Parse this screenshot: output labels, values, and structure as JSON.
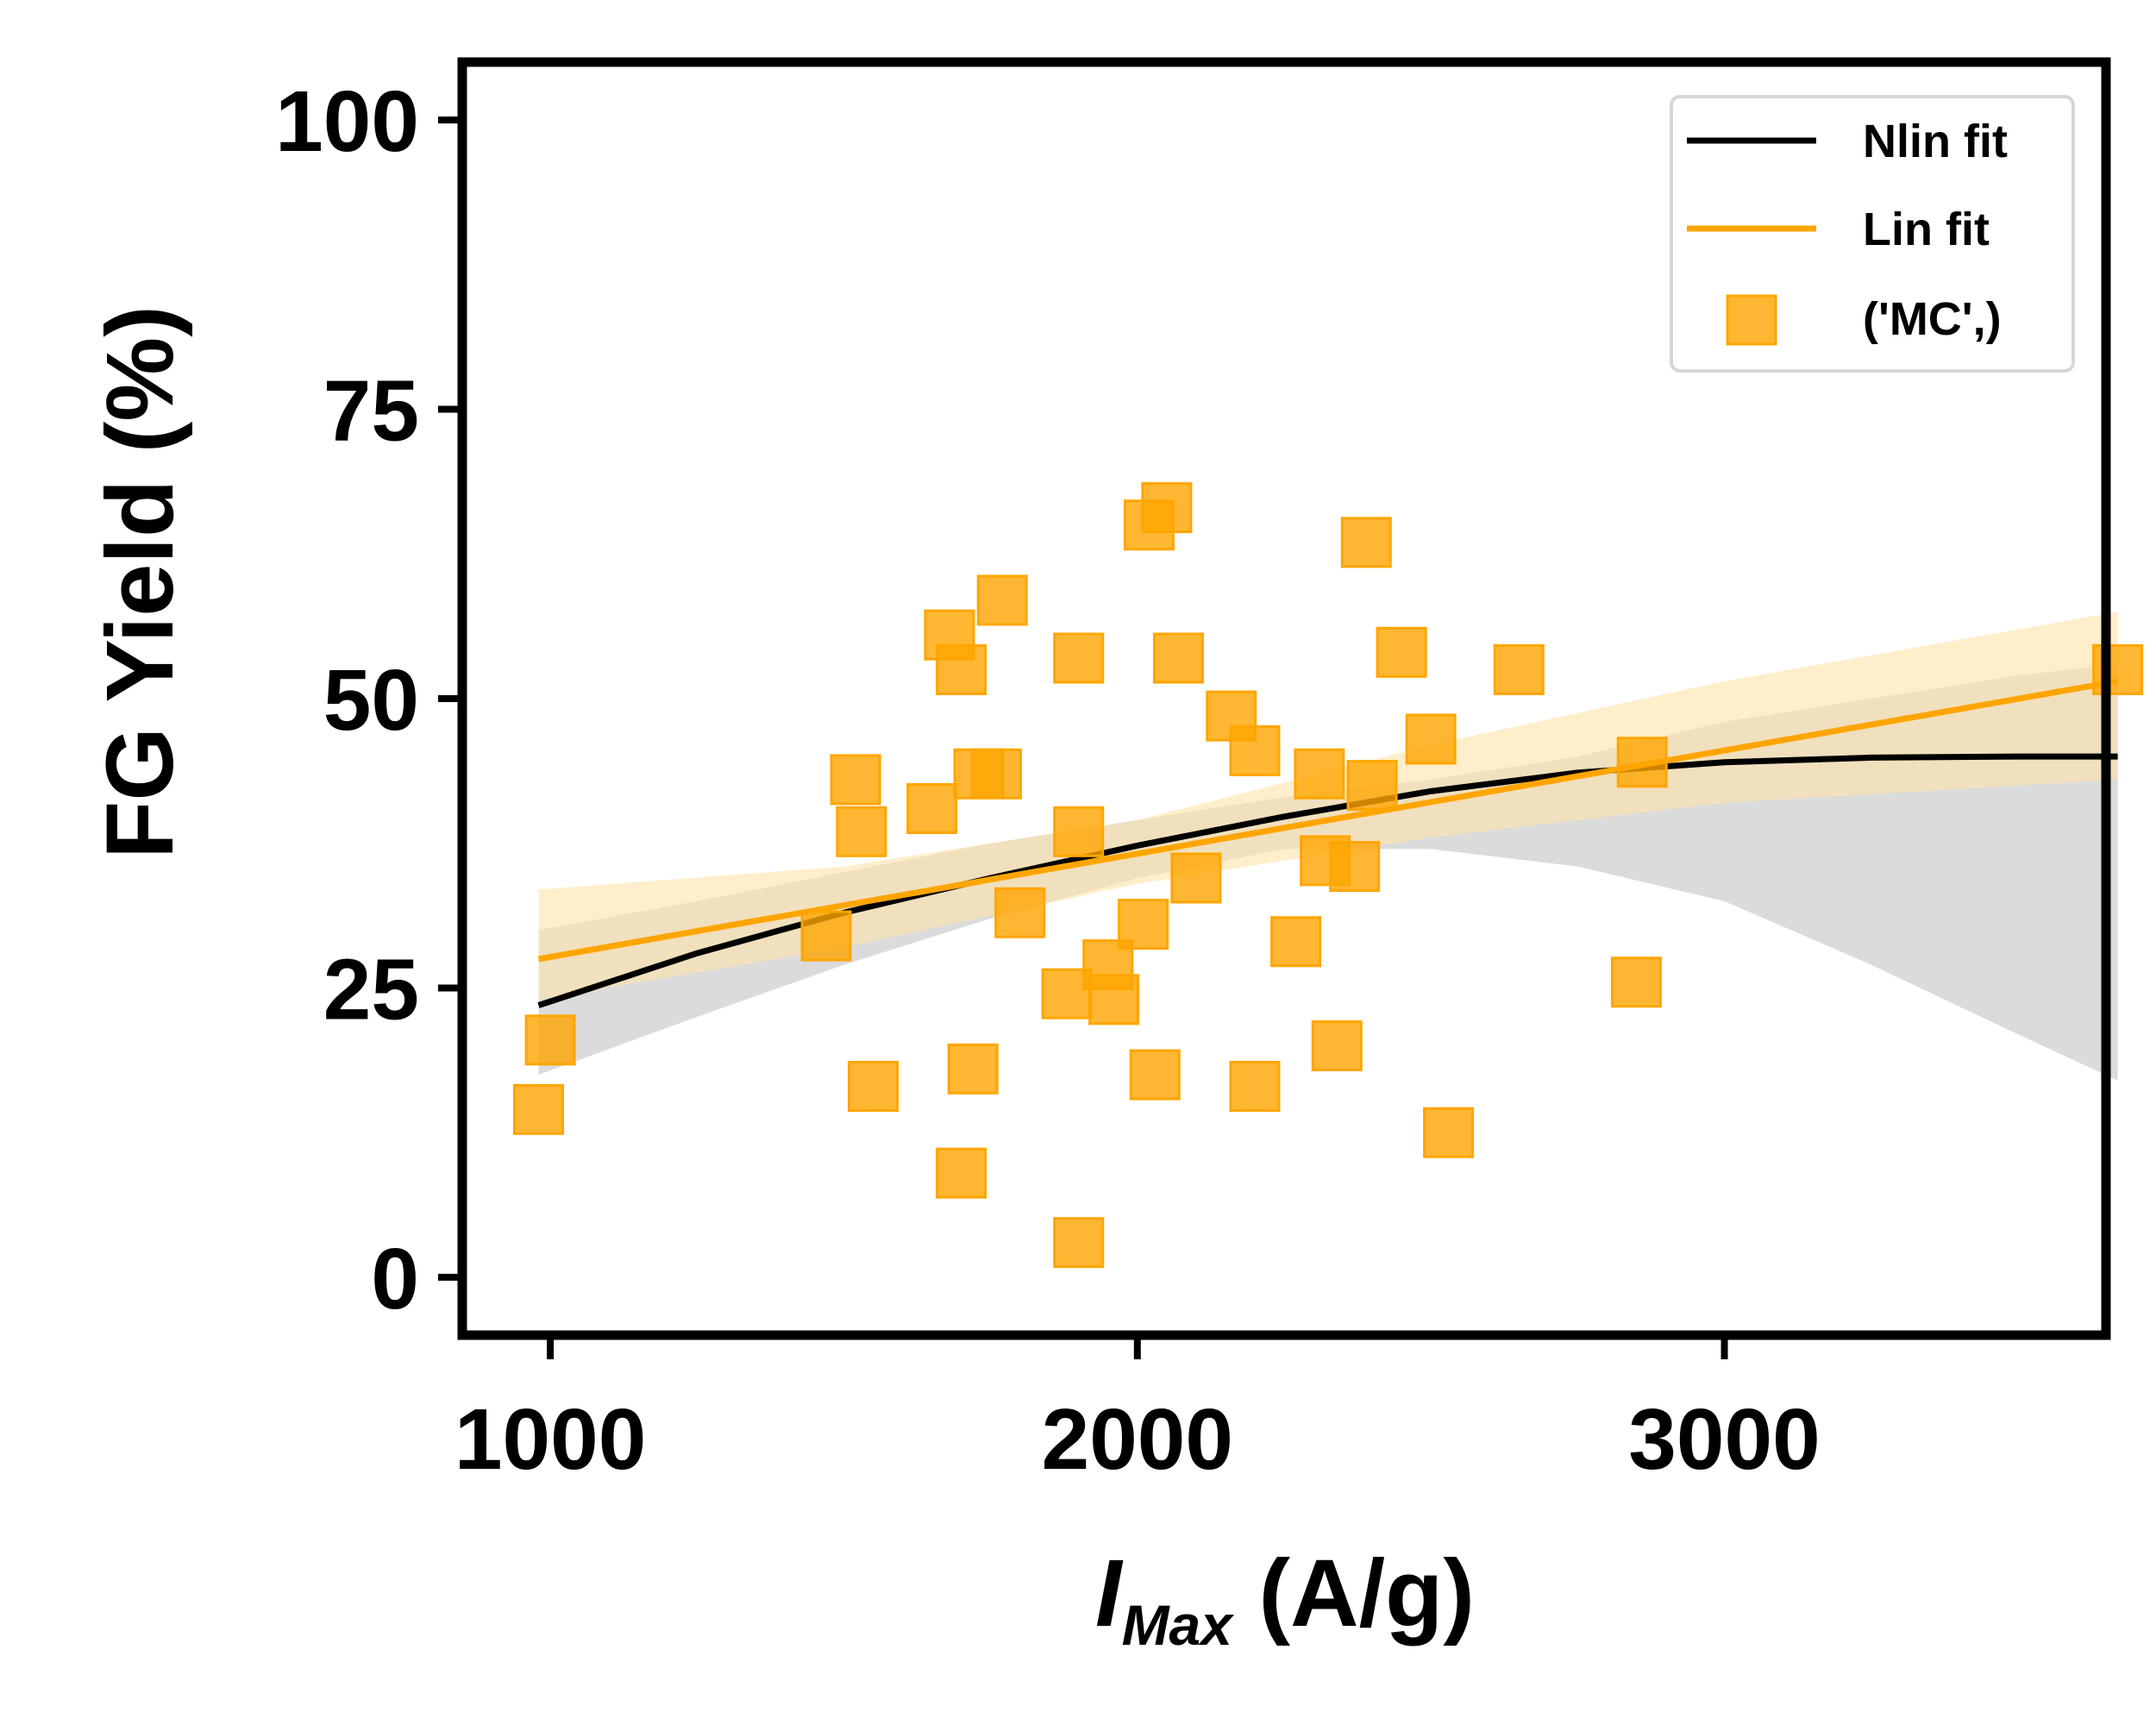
{
  "chart_data": {
    "type": "scatter",
    "title": "",
    "xlabel_main": "I",
    "xlabel_sub": "Max",
    "xlabel_unit": " (A/g)",
    "ylabel": "FG Yield (%)",
    "xlim": [
      850,
      3650
    ],
    "ylim": [
      -5,
      105
    ],
    "xticks": [
      1000,
      2000,
      3000
    ],
    "xtick_labels": [
      "1000",
      "2000",
      "3000"
    ],
    "yticks": [
      0,
      25,
      50,
      75,
      100
    ],
    "ytick_labels": [
      "0",
      "25",
      "50",
      "75",
      "100"
    ],
    "grid": false,
    "legend_position": "top-right",
    "colors": {
      "scatter": "#FFA500",
      "lin_fit": "#FFA500",
      "nlin_fit": "#000000",
      "nlin_band": "#bdbdbd",
      "lin_band": "#ffe3a8"
    },
    "legend": [
      {
        "label": "Nlin fit",
        "kind": "line",
        "color": "#000000"
      },
      {
        "label": "Lin fit",
        "kind": "line",
        "color": "#FFA500"
      },
      {
        "label": "('MC',)",
        "kind": "square",
        "color": "#FFA500"
      }
    ],
    "series": [
      {
        "name": "('MC',)",
        "kind": "scatter",
        "points": [
          [
            980,
            14.5
          ],
          [
            1000,
            20.5
          ],
          [
            1470,
            29.5
          ],
          [
            1520,
            43
          ],
          [
            1530,
            38.5
          ],
          [
            1550,
            16.5
          ],
          [
            1650,
            40.5
          ],
          [
            1680,
            55.5
          ],
          [
            1700,
            52.5
          ],
          [
            1700,
            9
          ],
          [
            1720,
            18
          ],
          [
            1730,
            43.5
          ],
          [
            1760,
            43.5
          ],
          [
            1770,
            58.5
          ],
          [
            1800,
            31.5
          ],
          [
            1880,
            24.5
          ],
          [
            1900,
            53.5
          ],
          [
            1900,
            38.5
          ],
          [
            1900,
            3
          ],
          [
            1950,
            27
          ],
          [
            1960,
            24
          ],
          [
            2010,
            30.5
          ],
          [
            2020,
            65
          ],
          [
            2030,
            17.5
          ],
          [
            2050,
            66.5
          ],
          [
            2070,
            53.5
          ],
          [
            2100,
            34.5
          ],
          [
            2160,
            48.5
          ],
          [
            2200,
            45.5
          ],
          [
            2200,
            16.5
          ],
          [
            2270,
            29
          ],
          [
            2310,
            43.5
          ],
          [
            2320,
            36
          ],
          [
            2340,
            20
          ],
          [
            2370,
            35.5
          ],
          [
            2390,
            63.5
          ],
          [
            2400,
            42.5
          ],
          [
            2450,
            54
          ],
          [
            2500,
            46.5
          ],
          [
            2530,
            12.5
          ],
          [
            2650,
            52.5
          ],
          [
            2850,
            25.5
          ],
          [
            2860,
            44.5
          ],
          [
            3670,
            52.5
          ]
        ]
      },
      {
        "name": "Lin fit",
        "kind": "line",
        "x": [
          980,
          3670
        ],
        "y": [
          27.5,
          51.5
        ],
        "band_upper": [
          [
            980,
            33.5
          ],
          [
            1500,
            35.5
          ],
          [
            2000,
            39.5
          ],
          [
            2500,
            46
          ],
          [
            3000,
            51.5
          ],
          [
            3670,
            57.5
          ]
        ],
        "band_lower": [
          [
            980,
            24
          ],
          [
            1500,
            28.5
          ],
          [
            2000,
            34
          ],
          [
            2500,
            38
          ],
          [
            3000,
            41
          ],
          [
            3670,
            43
          ]
        ]
      },
      {
        "name": "Nlin fit",
        "kind": "line",
        "x": [
          980,
          1250,
          1500,
          1750,
          2000,
          2250,
          2500,
          2750,
          3000,
          3250,
          3500,
          3670
        ],
        "y": [
          23.5,
          28,
          31.5,
          34.5,
          37.3,
          39.8,
          42,
          43.6,
          44.5,
          44.9,
          45,
          45
        ],
        "band_upper": [
          [
            980,
            30
          ],
          [
            1250,
            32.5
          ],
          [
            1500,
            35
          ],
          [
            1750,
            37.5
          ],
          [
            2000,
            39.5
          ],
          [
            2250,
            41.5
          ],
          [
            2500,
            43
          ],
          [
            2750,
            45
          ],
          [
            3000,
            48
          ],
          [
            3250,
            50
          ],
          [
            3500,
            52
          ],
          [
            3670,
            53
          ]
        ],
        "band_lower": [
          [
            980,
            17.5
          ],
          [
            1250,
            22.5
          ],
          [
            1500,
            27
          ],
          [
            1750,
            31
          ],
          [
            2000,
            34.5
          ],
          [
            2250,
            37
          ],
          [
            2500,
            37
          ],
          [
            2750,
            35.5
          ],
          [
            3000,
            32.5
          ],
          [
            3250,
            27
          ],
          [
            3500,
            21
          ],
          [
            3670,
            17
          ]
        ]
      }
    ]
  }
}
